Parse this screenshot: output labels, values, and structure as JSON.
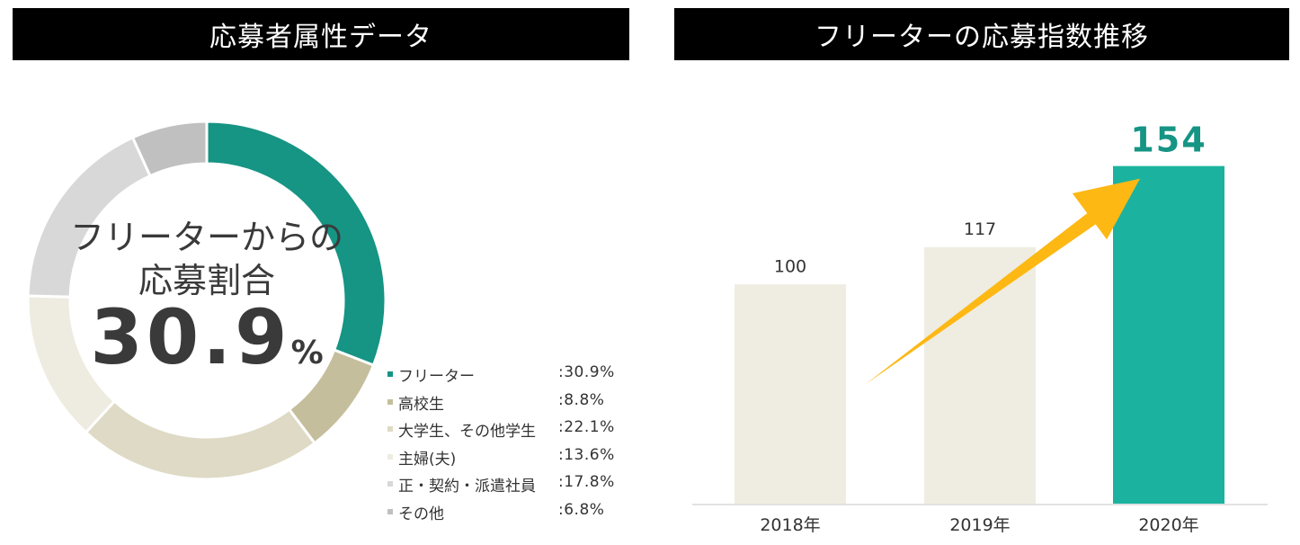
{
  "headers": {
    "left": "応募者属性データ",
    "right": "フリーターの応募指数推移"
  },
  "donut": {
    "center_line1": "フリーターからの",
    "center_line2": "応募割合",
    "center_value": "30.9",
    "center_unit": "%"
  },
  "chart_data": [
    {
      "type": "pie",
      "variant": "donut",
      "categories": [
        "フリーター",
        "高校生",
        "大学生、その他学生",
        "主婦(夫)",
        "正・契約・派遣社員",
        "その他"
      ],
      "values": [
        30.9,
        8.8,
        22.1,
        13.6,
        17.8,
        6.8
      ],
      "value_labels": [
        ":30.9%",
        ":8.8%",
        ":22.1%",
        ":13.6%",
        ":17.8%",
        ":6.8%"
      ],
      "colors": [
        "#169484",
        "#c5be9c",
        "#dedac5",
        "#eeebe0",
        "#d8d8d8",
        "#c0c0c0"
      ],
      "legend_placement": "bottom-right"
    },
    {
      "type": "bar",
      "categories": [
        "2018年",
        "2019年",
        "2020年"
      ],
      "values": [
        100,
        117,
        154
      ],
      "value_labels": [
        "100",
        "117",
        "154"
      ],
      "colors": [
        "#efece1",
        "#efece1",
        "#1bb39f"
      ],
      "ylim": [
        0,
        160
      ],
      "grid": false,
      "annotation": "trend-arrow"
    }
  ]
}
